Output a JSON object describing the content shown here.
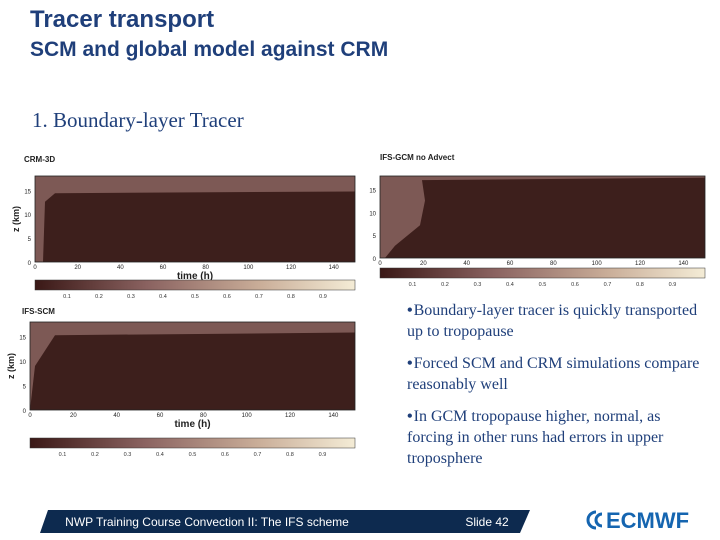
{
  "header": {
    "title": "Tracer transport",
    "subtitle": "SCM and global model against CRM"
  },
  "section": "1. Boundary-layer Tracer",
  "panels": [
    {
      "label": "CRM-3D",
      "y_label": "z (km)",
      "x_label": "time (h)",
      "yticks": [
        "15",
        "10",
        "5",
        "0"
      ],
      "xticks": [
        "0",
        "20",
        "40",
        "60",
        "80",
        "100",
        "120",
        "140"
      ],
      "colorbar_ticks": [
        "0.1",
        "0.2",
        "0.3",
        "0.4",
        "0.5",
        "0.6",
        "0.7",
        "0.8",
        "0.9"
      ]
    },
    {
      "label": "IFS-GCM no Advect",
      "yticks": [
        "15",
        "10",
        "5",
        "0"
      ],
      "xticks": [
        "0",
        "20",
        "40",
        "60",
        "80",
        "100",
        "120",
        "140"
      ],
      "colorbar_ticks": [
        "0.1",
        "0.2",
        "0.3",
        "0.4",
        "0.5",
        "0.6",
        "0.7",
        "0.8",
        "0.9"
      ]
    },
    {
      "label": "IFS-SCM",
      "y_label": "z (km)",
      "x_label": "time (h)",
      "yticks": [
        "15",
        "10",
        "5",
        "0"
      ],
      "xticks": [
        "0",
        "20",
        "40",
        "60",
        "80",
        "100",
        "120",
        "140"
      ],
      "colorbar_ticks": [
        "0.1",
        "0.2",
        "0.3",
        "0.4",
        "0.5",
        "0.6",
        "0.7",
        "0.8",
        "0.9"
      ]
    }
  ],
  "bullets": [
    "Boundary-layer tracer is quickly transported up to tropopause",
    "Forced SCM and CRM simulations compare reasonably well",
    "In GCM tropopause higher, normal, as forcing in other runs had errors in upper troposphere"
  ],
  "footer": {
    "course": "NWP Training Course Convection II: The IFS scheme",
    "slide": "Slide 42",
    "logo": "ECMWF"
  }
}
